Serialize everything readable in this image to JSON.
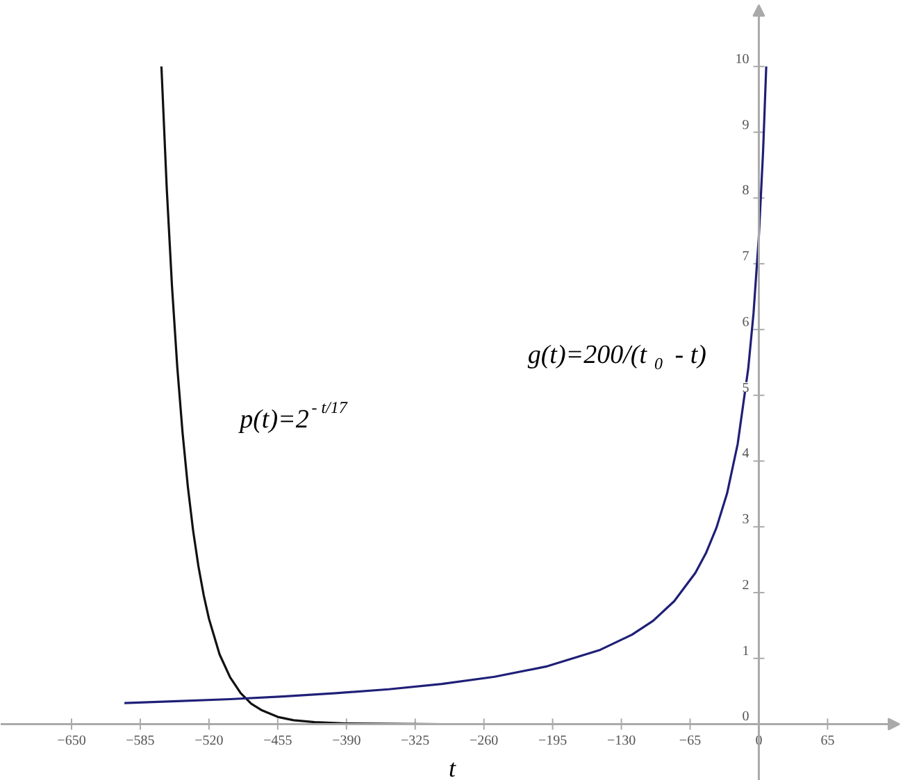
{
  "chart_data": {
    "type": "line",
    "xlabel": "t",
    "xlim": [
      -717,
      137
    ],
    "ylim": [
      -0.86,
      11.0
    ],
    "xticks": [
      -650,
      -585,
      -520,
      -455,
      -390,
      -325,
      -260,
      -195,
      -130,
      -65,
      0,
      65
    ],
    "yticks": [
      0,
      1,
      2,
      3,
      4,
      5,
      6,
      7,
      8,
      9,
      10
    ],
    "grid": false,
    "series": [
      {
        "name": "p(t)=2$^{- t/17}$",
        "color": "#111111",
        "x": [
          -565,
          -560,
          -555,
          -550,
          -545,
          -540,
          -535,
          -530,
          -525,
          -520,
          -510,
          -500,
          -490,
          -480,
          -470,
          -455,
          -440,
          -420,
          -390,
          -300,
          7
        ],
        "values": [
          10,
          8.16,
          6.66,
          5.43,
          4.43,
          3.61,
          2.94,
          2.4,
          1.96,
          1.6,
          1.06,
          0.71,
          0.47,
          0.31,
          0.21,
          0.11,
          0.06,
          0.03,
          0.01,
          0,
          0
        ]
      },
      {
        "name": "g(t)=200/(t$_{0}$ - t)",
        "color": "#1f1f78",
        "x": [
          -600,
          -550,
          -500,
          -450,
          -400,
          -350,
          -300,
          -250,
          -200,
          -150,
          -120,
          -100,
          -80,
          -60,
          -50,
          -40,
          -30,
          -20,
          -10,
          -5,
          0,
          4,
          7
        ],
        "values": [
          0.32,
          0.35,
          0.38,
          0.42,
          0.47,
          0.53,
          0.61,
          0.72,
          0.88,
          1.13,
          1.36,
          1.57,
          1.87,
          2.3,
          2.6,
          2.99,
          3.51,
          4.26,
          5.41,
          6.25,
          7.41,
          8.7,
          10
        ]
      }
    ]
  }
}
